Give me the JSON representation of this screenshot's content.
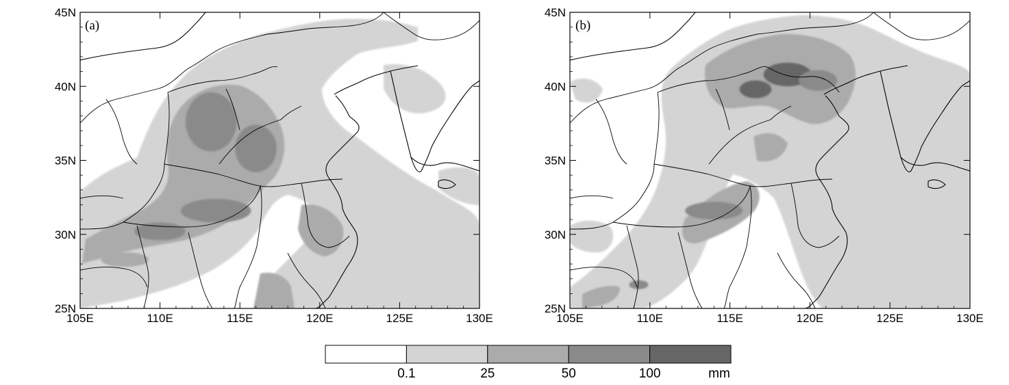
{
  "figure": {
    "panels": [
      {
        "id": "a",
        "label": "(a)",
        "lon_ticks": [
          "105E",
          "110E",
          "115E",
          "120E",
          "125E",
          "130E"
        ],
        "lat_ticks": [
          "25N",
          "30N",
          "35N",
          "40N",
          "45N"
        ],
        "heavy_rain_centers": [
          {
            "lon": 113.2,
            "lat": 37.6,
            "level": 3,
            "rx": 1.6,
            "ry": 2.0
          },
          {
            "lon": 116.0,
            "lat": 35.8,
            "level": 3,
            "rx": 1.3,
            "ry": 1.6
          },
          {
            "lon": 113.5,
            "lat": 31.6,
            "level": 3,
            "rx": 2.2,
            "ry": 0.8
          },
          {
            "lon": 110.0,
            "lat": 30.2,
            "level": 3,
            "rx": 1.6,
            "ry": 0.6
          },
          {
            "lon": 107.8,
            "lat": 28.3,
            "level": 2,
            "rx": 1.5,
            "ry": 0.5
          }
        ]
      },
      {
        "id": "b",
        "label": "(b)",
        "lon_ticks": [
          "105E",
          "110E",
          "115E",
          "120E",
          "125E",
          "130E"
        ],
        "lat_ticks": [
          "25N",
          "30N",
          "35N",
          "40N",
          "45N"
        ],
        "heavy_rain_centers": [
          {
            "lon": 118.6,
            "lat": 40.8,
            "level": 4,
            "rx": 1.5,
            "ry": 0.8
          },
          {
            "lon": 116.6,
            "lat": 39.8,
            "level": 4,
            "rx": 1.0,
            "ry": 0.6
          },
          {
            "lon": 120.5,
            "lat": 40.4,
            "level": 3,
            "rx": 1.2,
            "ry": 0.7
          },
          {
            "lon": 114.0,
            "lat": 31.6,
            "level": 3,
            "rx": 1.8,
            "ry": 0.6
          },
          {
            "lon": 109.3,
            "lat": 26.6,
            "level": 3,
            "rx": 0.6,
            "ry": 0.3
          }
        ]
      }
    ],
    "colorbar": {
      "labels": [
        "0.1",
        "25",
        "50",
        "100"
      ],
      "unit": "mm",
      "colors": [
        "#ffffff",
        "#d4d4d4",
        "#ababab",
        "#8a8a8a",
        "#666666"
      ]
    }
  }
}
